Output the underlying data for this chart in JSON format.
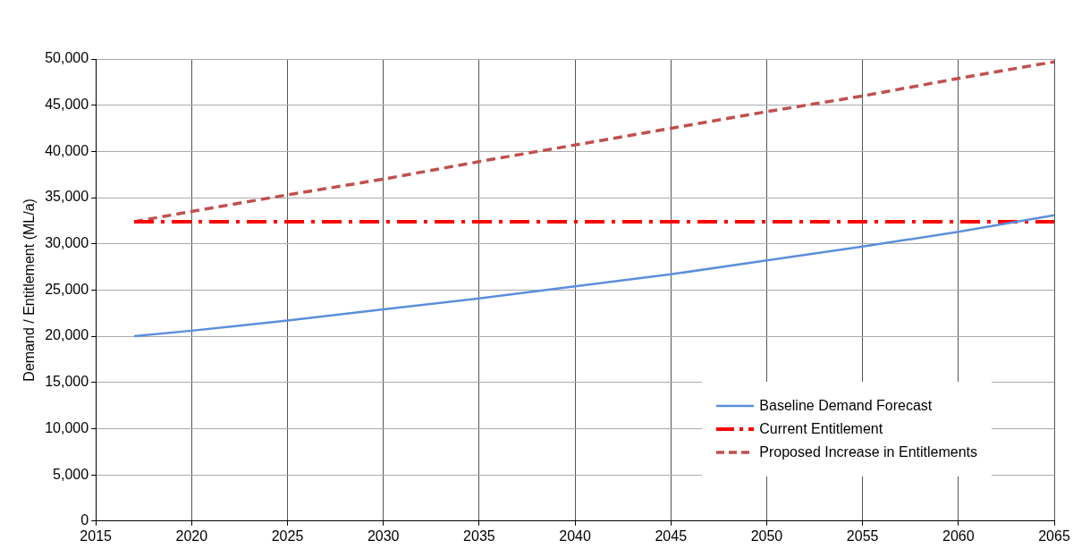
{
  "chart_data": {
    "type": "line",
    "ylabel": "Demand / Entitlement (ML/a)",
    "xlim": [
      2015,
      2065
    ],
    "xticks": [
      2015,
      2020,
      2025,
      2030,
      2035,
      2040,
      2045,
      2050,
      2055,
      2060,
      2065
    ],
    "ylim": [
      0,
      50000
    ],
    "yticks": [
      0,
      {
        "value": 5000,
        "label": "5,000"
      },
      {
        "value": 10000,
        "label": "10,000"
      },
      {
        "value": 15000,
        "label": "15,000"
      },
      {
        "value": 20000,
        "label": "20,000"
      },
      {
        "value": 25000,
        "label": "25,000"
      },
      {
        "value": 30000,
        "label": "30,000"
      },
      {
        "value": 35000,
        "label": "35,000"
      },
      {
        "value": 40000,
        "label": "40,000"
      },
      {
        "value": 45000,
        "label": "45,000"
      },
      {
        "value": 50000,
        "label": "50,000"
      }
    ],
    "grid": true,
    "legend": "bottom right",
    "marker": "none",
    "series": [
      {
        "name": "Baseline Demand Forecast",
        "color": "#5b8fdc",
        "line_style": "solid",
        "x": [
          2017,
          2020,
          2025,
          2030,
          2035,
          2040,
          2045,
          2050,
          2055,
          2060,
          2065
        ],
        "values": [
          20000,
          20600,
          21700,
          22900,
          24100,
          25400,
          26700,
          28200,
          29700,
          31300,
          33100
        ]
      },
      {
        "name": "Current Entitlement",
        "color": "#ff0000",
        "line_style": "dashdot",
        "x": [
          2017,
          2065
        ],
        "values": [
          32400,
          32400
        ]
      },
      {
        "name": "Proposed Increase in Entitlements",
        "color": "#c0504d",
        "line_style": "dashed",
        "x": [
          2017,
          2020,
          2025,
          2030,
          2035,
          2040,
          2045,
          2050,
          2055,
          2060,
          2065
        ],
        "values": [
          32400,
          33500,
          35300,
          37000,
          38900,
          40700,
          42500,
          44300,
          46000,
          47900,
          49700
        ]
      }
    ]
  }
}
